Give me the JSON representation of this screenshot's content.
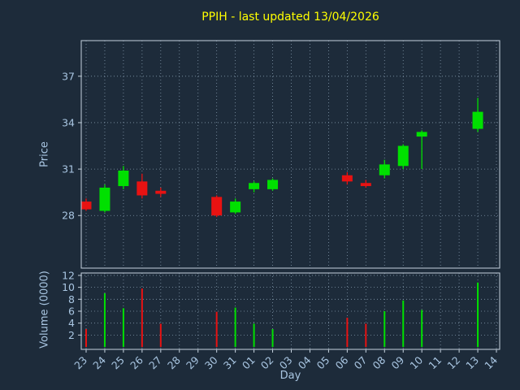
{
  "chart_data": {
    "type": "candlestick",
    "title": "PPIH - last updated 13/04/2026",
    "xlabel": "Day",
    "price_ylabel": "Price",
    "volume_ylabel": "Volume (0000)",
    "x_ticks": [
      "23",
      "24",
      "25",
      "26",
      "27",
      "28",
      "29",
      "30",
      "31",
      "01",
      "02",
      "03",
      "04",
      "05",
      "06",
      "07",
      "08",
      "09",
      "10",
      "11",
      "12",
      "13",
      "14"
    ],
    "price_ticks": [
      28,
      31,
      34,
      37
    ],
    "price_range": [
      24.6,
      39.3
    ],
    "volume_ticks": [
      2,
      4,
      6,
      8,
      10,
      12
    ],
    "volume_range": [
      -0.4,
      12.4
    ],
    "grid": "on",
    "colors": {
      "background": "#1d2b3a",
      "up": "#00e000",
      "down": "#e81212",
      "title": "#ffff00",
      "axis_label": "#a9c6e2",
      "tick_label": "#a9c6e2",
      "grid": "#8ea4b8",
      "spine": "#c5d2de"
    },
    "candles": [
      {
        "day": "23",
        "open": 28.9,
        "high": 29.1,
        "low": 28.3,
        "close": 28.4,
        "volume": 3.0,
        "direction": "down"
      },
      {
        "day": "24",
        "open": 28.3,
        "high": 30.0,
        "low": 28.2,
        "close": 29.8,
        "volume": 9.0,
        "direction": "up"
      },
      {
        "day": "25",
        "open": 29.9,
        "high": 31.2,
        "low": 29.7,
        "close": 30.9,
        "volume": 6.5,
        "direction": "up"
      },
      {
        "day": "26",
        "open": 30.2,
        "high": 30.7,
        "low": 29.1,
        "close": 29.3,
        "volume": 9.8,
        "direction": "down"
      },
      {
        "day": "27",
        "open": 29.6,
        "high": 29.8,
        "low": 29.2,
        "close": 29.4,
        "volume": 3.9,
        "direction": "down"
      },
      {
        "day": "30",
        "open": 29.2,
        "high": 29.3,
        "low": 27.9,
        "close": 28.0,
        "volume": 5.9,
        "direction": "down"
      },
      {
        "day": "31",
        "open": 28.2,
        "high": 29.1,
        "low": 28.1,
        "close": 28.9,
        "volume": 6.6,
        "direction": "up"
      },
      {
        "day": "01",
        "open": 29.7,
        "high": 30.2,
        "low": 29.5,
        "close": 30.1,
        "volume": 3.9,
        "direction": "up"
      },
      {
        "day": "02",
        "open": 29.7,
        "high": 30.4,
        "low": 29.6,
        "close": 30.3,
        "volume": 3.0,
        "direction": "up"
      },
      {
        "day": "06",
        "open": 30.6,
        "high": 30.8,
        "low": 30.0,
        "close": 30.2,
        "volume": 4.9,
        "direction": "down"
      },
      {
        "day": "07",
        "open": 30.1,
        "high": 30.3,
        "low": 29.8,
        "close": 29.9,
        "volume": 3.9,
        "direction": "down"
      },
      {
        "day": "08",
        "open": 30.6,
        "high": 31.6,
        "low": 30.4,
        "close": 31.3,
        "volume": 6.0,
        "direction": "up"
      },
      {
        "day": "09",
        "open": 31.2,
        "high": 32.6,
        "low": 31.0,
        "close": 32.5,
        "volume": 7.8,
        "direction": "up"
      },
      {
        "day": "10",
        "open": 33.1,
        "high": 33.5,
        "low": 31.0,
        "close": 33.4,
        "volume": 6.2,
        "direction": "up"
      },
      {
        "day": "13",
        "open": 33.6,
        "high": 35.6,
        "low": 33.4,
        "close": 34.7,
        "volume": 10.8,
        "direction": "up"
      }
    ]
  }
}
